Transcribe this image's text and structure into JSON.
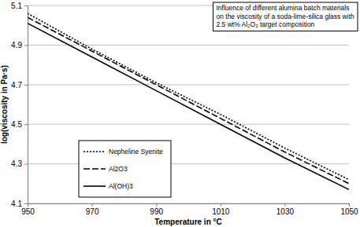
{
  "chart_data": {
    "type": "line",
    "title": "Influence of different alumina batch materials\non the viscosity of a soda-lime-silica glass with\n2.5 wt% Al₂O₃ target composition",
    "x_label": "Temperature in °C",
    "y_label": "log(viscosity in Pa·s)",
    "x": [
      950,
      970,
      990,
      1010,
      1030,
      1050
    ],
    "series": [
      {
        "name": "Nepheline Syenite",
        "color": "#000000",
        "line_style": "dotted",
        "values": [
          5.06,
          4.88,
          4.71,
          4.55,
          4.38,
          4.22
        ]
      },
      {
        "name": "Al2O3",
        "color": "#000000",
        "line_style": "dashed",
        "values": [
          5.04,
          4.87,
          4.7,
          4.53,
          4.36,
          4.2
        ]
      },
      {
        "name": "Al(OH)3",
        "color": "#000000",
        "line_style": "solid",
        "values": [
          5.01,
          4.84,
          4.67,
          4.5,
          4.33,
          4.17
        ]
      }
    ],
    "xlim": [
      950,
      1050
    ],
    "xticks": [
      950,
      970,
      990,
      1010,
      1030,
      1050
    ],
    "ylim": [
      4.1,
      5.1
    ],
    "yticks": [
      4.1,
      4.3,
      4.5,
      4.7,
      4.9,
      5.1
    ],
    "grid": "y",
    "legend": "lower left"
  }
}
